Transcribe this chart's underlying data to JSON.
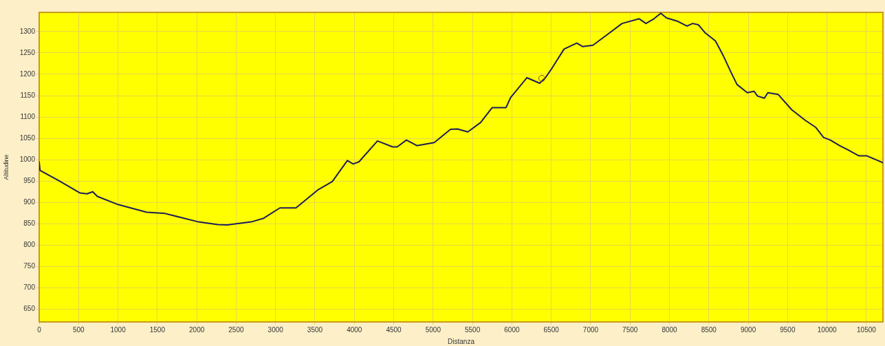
{
  "chart_data": {
    "type": "line",
    "xlabel": "Distanza",
    "ylabel": "Altitudine",
    "xlim": [
      0,
      10710
    ],
    "ylim": [
      620,
      1345
    ],
    "xticks": [
      0,
      500,
      1000,
      1500,
      2000,
      2500,
      3000,
      3500,
      4000,
      4500,
      5000,
      5500,
      6000,
      6500,
      7000,
      7500,
      8000,
      8500,
      9000,
      9500,
      10000,
      10500
    ],
    "yticks": [
      650,
      700,
      750,
      800,
      850,
      900,
      950,
      1000,
      1050,
      1100,
      1150,
      1200,
      1250,
      1300
    ],
    "grid": true,
    "legend": false,
    "marker": "none",
    "line_style": "solid",
    "series": [
      {
        "color": "#1c1c5a",
        "x": [
          0,
          10,
          257,
          519,
          607,
          680,
          738,
          1000,
          1364,
          1598,
          2006,
          2268,
          2385,
          2706,
          2851,
          3055,
          3259,
          3544,
          3721,
          3912,
          3985,
          4059,
          4294,
          4485,
          4544,
          4662,
          4794,
          5015,
          5221,
          5309,
          5441,
          5603,
          5750,
          5926,
          5985,
          6191,
          6353,
          6426,
          6515,
          6662,
          6824,
          6897,
          7029,
          7182,
          7399,
          7616,
          7702,
          7803,
          7890,
          7962,
          8107,
          8223,
          8295,
          8367,
          8454,
          8584,
          8685,
          8786,
          8858,
          8988,
          9075,
          9118,
          9205,
          9249,
          9379,
          9552,
          9725,
          9855,
          9957,
          10043,
          10159,
          10275,
          10405,
          10506,
          10710
        ],
        "values": [
          995,
          975,
          950,
          922,
          920,
          925,
          914,
          895,
          877,
          874,
          855,
          848,
          847,
          855,
          863,
          887,
          887,
          930,
          949,
          998,
          990,
          995,
          1044,
          1030,
          1030,
          1046,
          1033,
          1040,
          1071,
          1072,
          1065,
          1087,
          1122,
          1122,
          1146,
          1192,
          1179,
          1192,
          1216,
          1259,
          1273,
          1265,
          1268,
          1289,
          1319,
          1330,
          1319,
          1330,
          1343,
          1332,
          1324,
          1313,
          1319,
          1316,
          1297,
          1278,
          1243,
          1203,
          1176,
          1157,
          1160,
          1149,
          1144,
          1157,
          1153,
          1117,
          1092,
          1076,
          1052,
          1046,
          1033,
          1022,
          1009,
          1009,
          993
        ]
      }
    ]
  }
}
